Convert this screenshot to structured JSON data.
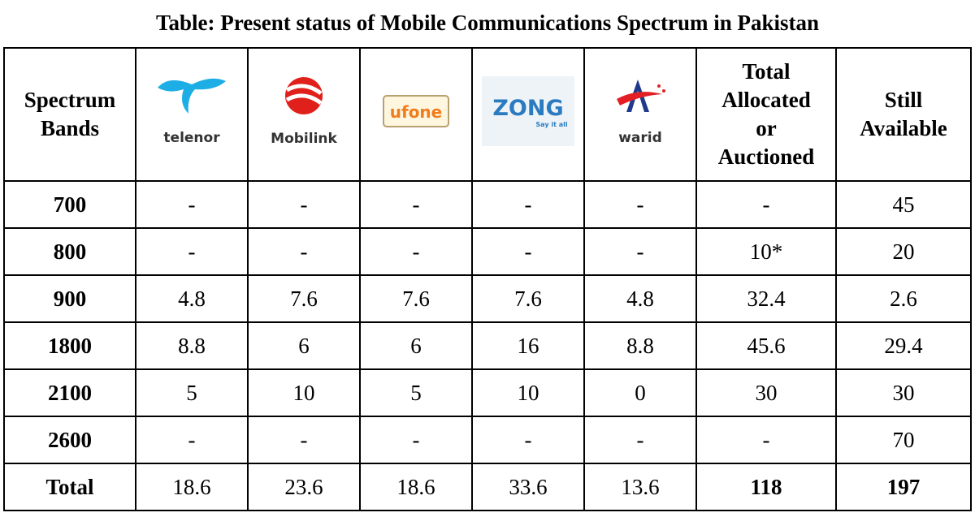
{
  "title": "Table: Present status of Mobile Communications Spectrum in Pakistan",
  "header": {
    "band_label_1": "Spectrum",
    "band_label_2": "Bands",
    "operators": [
      "telenor",
      "Mobilink",
      "ufone",
      "ZONG",
      "warid"
    ],
    "zong_tagline": "Say it all",
    "total_label_1": "Total",
    "total_label_2": "Allocated",
    "total_label_3": "or",
    "total_label_4": "Auctioned",
    "still_label_1": "Still",
    "still_label_2": "Available"
  },
  "rows": [
    {
      "band": "700",
      "telenor": "-",
      "mobilink": "-",
      "ufone": "-",
      "zong": "-",
      "warid": "-",
      "total": "-",
      "available": "45"
    },
    {
      "band": "800",
      "telenor": "-",
      "mobilink": "-",
      "ufone": "-",
      "zong": "-",
      "warid": "-",
      "total": "10*",
      "available": "20"
    },
    {
      "band": "900",
      "telenor": "4.8",
      "mobilink": "7.6",
      "ufone": "7.6",
      "zong": "7.6",
      "warid": "4.8",
      "total": "32.4",
      "available": "2.6"
    },
    {
      "band": "1800",
      "telenor": "8.8",
      "mobilink": "6",
      "ufone": "6",
      "zong": "16",
      "warid": "8.8",
      "total": "45.6",
      "available": "29.4"
    },
    {
      "band": "2100",
      "telenor": "5",
      "mobilink": "10",
      "ufone": "5",
      "zong": "10",
      "warid": "0",
      "total": "30",
      "available": "30"
    },
    {
      "band": "2600",
      "telenor": "-",
      "mobilink": "-",
      "ufone": "-",
      "zong": "-",
      "warid": "-",
      "total": "-",
      "available": "70"
    },
    {
      "band": "Total",
      "telenor": "18.6",
      "mobilink": "23.6",
      "ufone": "18.6",
      "zong": "33.6",
      "warid": "13.6",
      "total": "118",
      "available": "197"
    }
  ],
  "colors": {
    "telenor_blue": "#1eaee6",
    "mobilink_red": "#e0201b",
    "ufone_orange": "#f07d1a",
    "ufone_green": "#8dc63f",
    "zong_blue": "#2b7bc1",
    "warid_red": "#e31e24",
    "warid_blue": "#1e3a8a"
  }
}
